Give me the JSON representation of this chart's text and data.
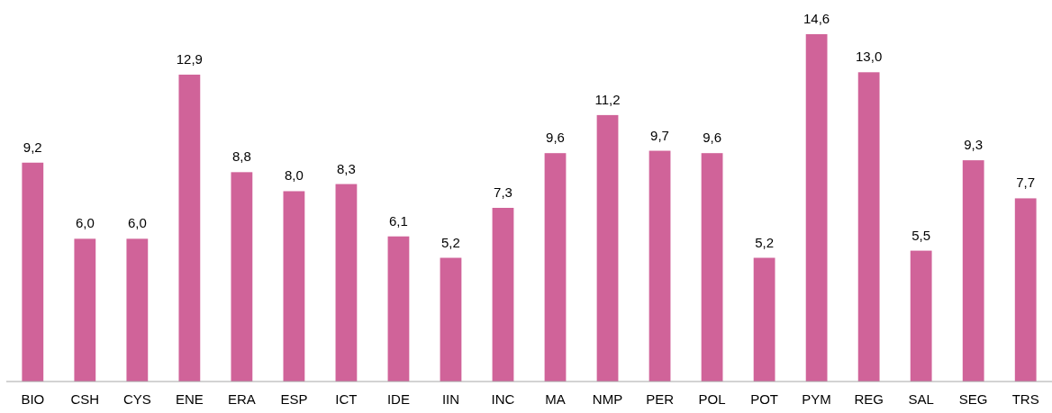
{
  "chart_data": {
    "type": "bar",
    "categories": [
      "BIO",
      "CSH",
      "CYS",
      "ENE",
      "ERA",
      "ESP",
      "ICT",
      "IDE",
      "IIN",
      "INC",
      "MA",
      "NMP",
      "PER",
      "POL",
      "POT",
      "PYM",
      "REG",
      "SAL",
      "SEG",
      "TRS"
    ],
    "values": [
      9.2,
      6.0,
      6.0,
      12.9,
      8.8,
      8.0,
      8.3,
      6.1,
      5.2,
      7.3,
      9.6,
      11.2,
      9.7,
      9.6,
      5.2,
      14.6,
      13.0,
      5.5,
      9.3,
      7.7
    ],
    "value_labels": [
      "9,2",
      "6,0",
      "6,0",
      "12,9",
      "8,8",
      "8,0",
      "8,3",
      "6,1",
      "5,2",
      "7,3",
      "9,6",
      "11,2",
      "9,7",
      "9,6",
      "5,2",
      "14,6",
      "13,0",
      "5,5",
      "9,3",
      "7,7"
    ],
    "color": "#d06399"
  }
}
